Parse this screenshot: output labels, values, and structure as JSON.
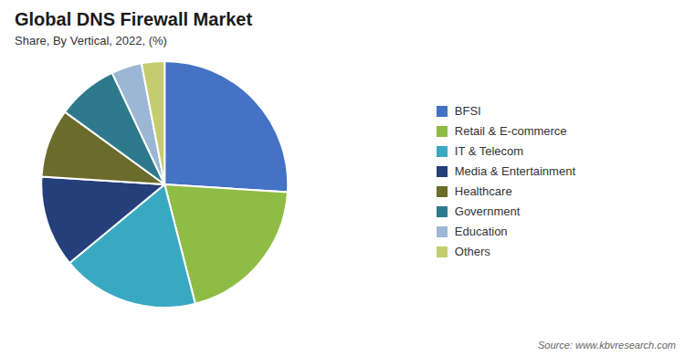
{
  "chart_data": {
    "type": "pie",
    "title": "Global DNS Firewall Market",
    "subtitle": "Share, By Vertical, 2022, (%)",
    "annotations": [
      "Source: www.kbvresearch.com"
    ],
    "categories": [
      "BFSI",
      "Retail & E-commerce",
      "IT & Telecom",
      "Media & Entertainment",
      "Healthcare",
      "Government",
      "Education",
      "Others"
    ],
    "values": [
      26,
      20,
      18,
      12,
      9,
      8,
      4,
      3
    ],
    "colors": [
      "#4472C4",
      "#8FBC45",
      "#39A9C2",
      "#243F7A",
      "#6B6B2B",
      "#2E7A8C",
      "#9BB7D4",
      "#C5CC6D"
    ],
    "legend": "right"
  }
}
